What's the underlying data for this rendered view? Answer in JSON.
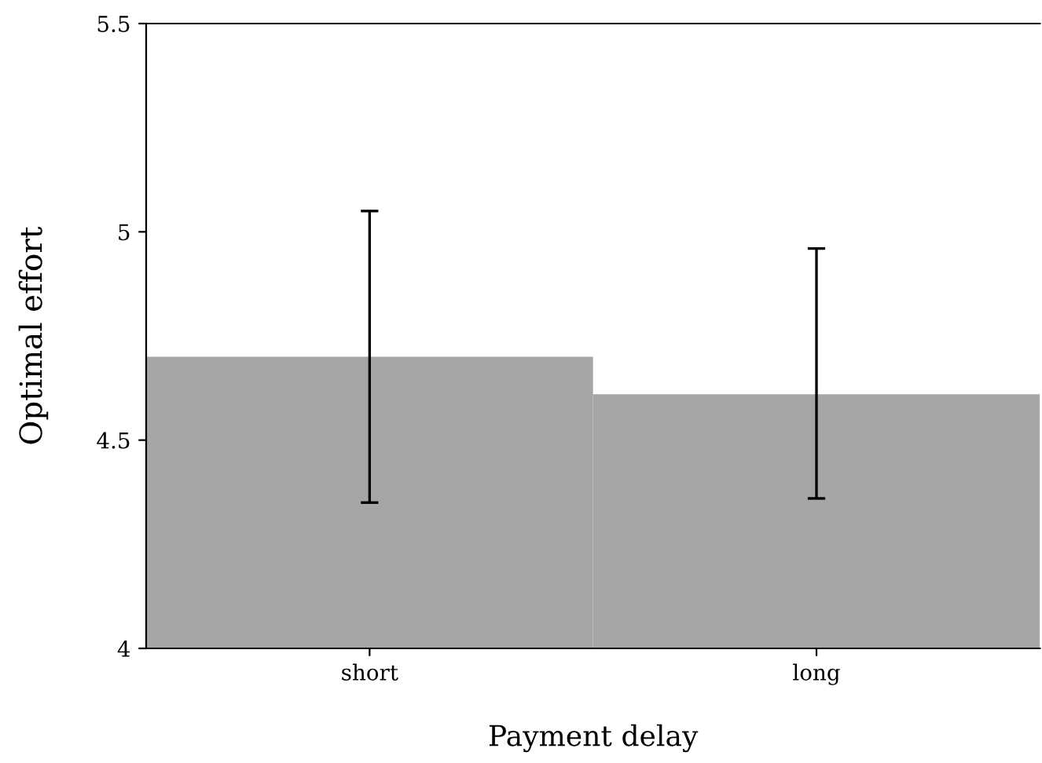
{
  "chart_data": {
    "type": "bar",
    "xlabel": "Payment delay",
    "ylabel": "Optimal effort",
    "categories": [
      "short",
      "long"
    ],
    "values": [
      4.7,
      4.61
    ],
    "errors": [
      [
        4.35,
        5.05
      ],
      [
        4.36,
        4.96
      ]
    ],
    "color": "#a6a6a6",
    "ylim": [
      4,
      5.5
    ],
    "yticks": [
      4,
      4.5,
      5,
      5.5
    ],
    "grid": false,
    "legend": false
  }
}
